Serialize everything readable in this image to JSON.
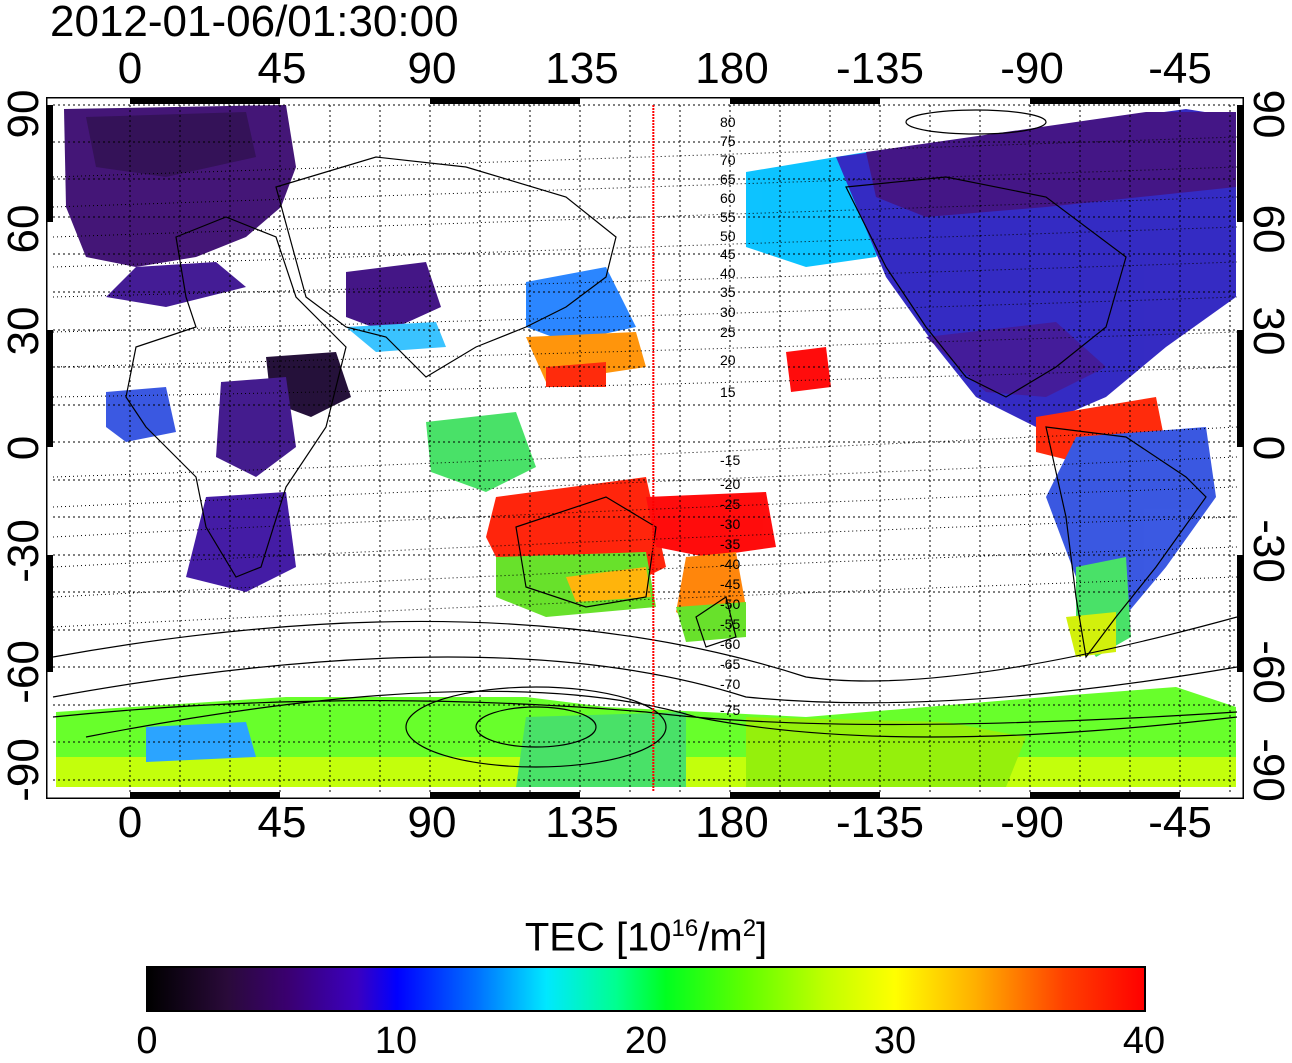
{
  "title": "2012-01-06/01:30:00",
  "lon_ticks_top": [
    "0",
    "45",
    "90",
    "135",
    "180",
    "-135",
    "-90",
    "-45"
  ],
  "lon_ticks_bottom": [
    "0",
    "45",
    "90",
    "135",
    "180",
    "-135",
    "-90",
    "-45"
  ],
  "lat_ticks_left": [
    "90",
    "60",
    "30",
    "0",
    "-30",
    "-60",
    "-90"
  ],
  "lat_ticks_right": [
    "90",
    "60",
    "30",
    "0",
    "-30",
    "-60",
    "-90"
  ],
  "magnetic_latitude_labels": [
    "80",
    "75",
    "70",
    "65",
    "60",
    "55",
    "50",
    "45",
    "40",
    "35",
    "30",
    "25",
    "20",
    "15",
    "-15",
    "-20",
    "-25",
    "-30",
    "-35",
    "-40",
    "-45",
    "-50",
    "-55",
    "-60",
    "-65",
    "-70",
    "-75"
  ],
  "terminator_longitude": 157,
  "colorbar": {
    "label_main": "TEC  [10",
    "label_exp": "16",
    "label_mid": "/m",
    "label_exp2": "2",
    "label_end": "]",
    "ticks": [
      "0",
      "10",
      "20",
      "30",
      "40"
    ],
    "min": 0,
    "max": 40
  },
  "colors": {
    "terminator": "#ff0000",
    "grid": "#000000"
  }
}
